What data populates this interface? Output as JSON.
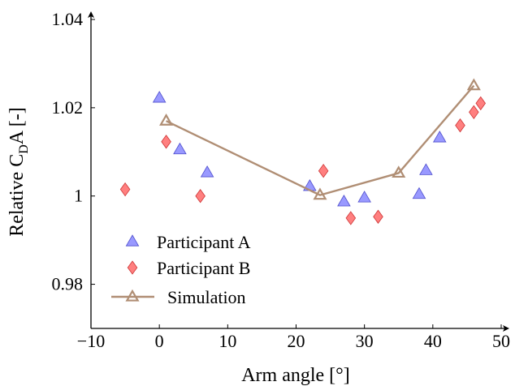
{
  "chart_data": {
    "type": "scatter",
    "xlabel": "Arm angle [°]",
    "ylabel": {
      "main": "Relative C",
      "sub": "D",
      "rest": "A [-]"
    },
    "xlim": [
      -10,
      50
    ],
    "ylim": [
      0.97,
      1.04
    ],
    "xticks": [
      -10,
      0,
      10,
      20,
      30,
      40,
      50
    ],
    "xtick_labels": [
      "−10",
      "0",
      "10",
      "20",
      "30",
      "40",
      "50"
    ],
    "yticks": [
      0.98,
      1.0,
      1.02,
      1.04
    ],
    "ytick_labels": [
      "0.98",
      "1",
      "1.02",
      "1.04"
    ],
    "grid": false,
    "legend_position": "bottom-left",
    "series": [
      {
        "name": "Participant A",
        "marker": "triangle",
        "color": "#9999ff",
        "edge_color": "#4d4dcc",
        "x": [
          0,
          3,
          7,
          22,
          27,
          30,
          38,
          39,
          41
        ],
        "y": [
          1.0222,
          1.0105,
          1.0053,
          1.0022,
          0.9987,
          0.9996,
          1.0004,
          1.0058,
          1.0132
        ]
      },
      {
        "name": "Participant B",
        "marker": "diamond",
        "color": "#ff7f7f",
        "edge_color": "#cc3333",
        "x": [
          -5,
          1,
          6,
          24,
          28,
          32,
          44,
          46,
          47
        ],
        "y": [
          1.0015,
          1.0123,
          1.0,
          1.0057,
          0.995,
          0.9953,
          1.016,
          1.019,
          1.021
        ]
      },
      {
        "name": "Simulation",
        "marker": "triangle-line",
        "color": "#b08e74",
        "x": [
          1,
          23.5,
          35,
          46
        ],
        "y": [
          1.017,
          1.0002,
          1.0052,
          1.025
        ]
      }
    ]
  }
}
